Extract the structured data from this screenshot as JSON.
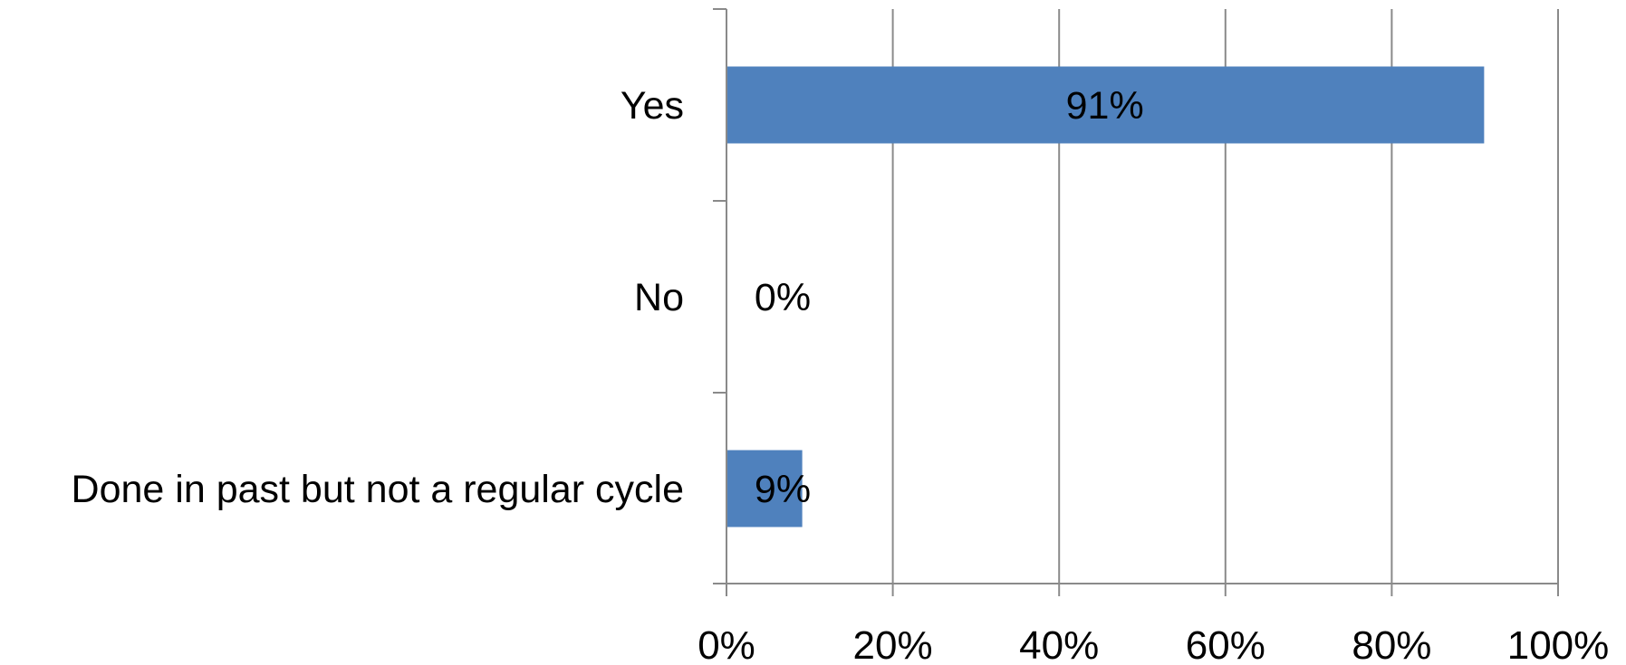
{
  "chart_data": {
    "type": "bar",
    "orientation": "horizontal",
    "categories": [
      "Yes",
      "No",
      "Done in past but not a regular cycle"
    ],
    "values": [
      91,
      0,
      9
    ],
    "data_labels": [
      "91%",
      "0%",
      "9%"
    ],
    "x_ticks": [
      "0%",
      "20%",
      "40%",
      "60%",
      "80%",
      "100%"
    ],
    "xlim": [
      0,
      100
    ],
    "title": "",
    "xlabel": "",
    "ylabel": "",
    "grid": "vertical",
    "legend": "none",
    "bar_color": "#4f81bd",
    "grid_color": "#8a8a8a"
  }
}
